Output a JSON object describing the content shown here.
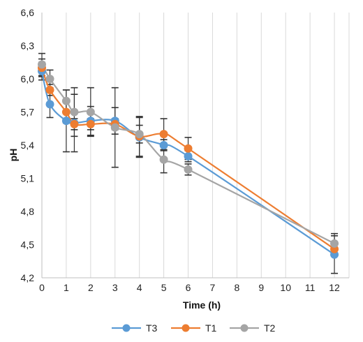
{
  "chart_data": {
    "type": "line",
    "xlabel": "Time (h)",
    "ylabel": "pH",
    "x_ticks": [
      "0",
      "1",
      "2",
      "3",
      "4",
      "5",
      "6",
      "7",
      "8",
      "9",
      "10",
      "11",
      "12"
    ],
    "x": [
      0,
      0.33,
      1,
      1.33,
      2,
      3,
      4,
      5,
      6,
      12
    ],
    "x_tick_positions": [
      0,
      1,
      2,
      3,
      4,
      5,
      6,
      7,
      8,
      9,
      10,
      11,
      12
    ],
    "y_ticks": [
      "4,2",
      "4,5",
      "4,8",
      "5,1",
      "5,4",
      "5,7",
      "6,0",
      "6,3",
      "6,6"
    ],
    "ylim": [
      4.2,
      6.6
    ],
    "grid": "vertical",
    "legend": "bottom",
    "series": [
      {
        "name": "T3",
        "color": "#5B9BD5",
        "values": [
          6.07,
          5.77,
          5.62,
          5.6,
          5.62,
          5.62,
          5.47,
          5.4,
          5.3,
          4.41
        ],
        "errors": [
          0.08,
          0.12,
          0.28,
          0.26,
          0.13,
          0.12,
          0.18,
          0.05,
          0.05,
          0.17
        ]
      },
      {
        "name": "T1",
        "color": "#ED7D31",
        "values": [
          6.1,
          5.9,
          5.7,
          5.59,
          5.59,
          5.59,
          5.48,
          5.5,
          5.37,
          4.46
        ],
        "errors": [
          0.08,
          0.05,
          0.1,
          0.05,
          0.05,
          0.05,
          0.18,
          0.14,
          0.1,
          0.05
        ]
      },
      {
        "name": "T2",
        "color": "#A5A5A5",
        "values": [
          6.13,
          6.0,
          5.8,
          5.7,
          5.7,
          5.56,
          5.5,
          5.27,
          5.18,
          4.51
        ],
        "errors": [
          0.1,
          0.08,
          0.1,
          0.22,
          0.22,
          0.36,
          0.08,
          0.12,
          0.05,
          0.09
        ]
      }
    ]
  }
}
